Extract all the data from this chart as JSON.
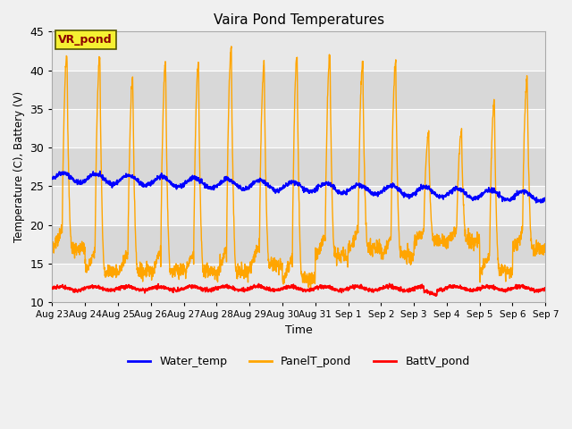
{
  "title": "Vaira Pond Temperatures",
  "xlabel": "Time",
  "ylabel": "Temperature (C), Battery (V)",
  "ylim": [
    10,
    45
  ],
  "background_color": "#f0f0f0",
  "plot_bg_color": "#e8e8e8",
  "band_colors": [
    "#e8e8e8",
    "#d8d8d8"
  ],
  "grid_color": "#ffffff",
  "annotation_text": "VR_pond",
  "annotation_bg": "#f5f032",
  "annotation_border": "#8B0000",
  "water_temp_color": "#0000ff",
  "panel_temp_color": "#FFA500",
  "batt_color": "#ff0000",
  "legend_labels": [
    "Water_temp",
    "PanelT_pond",
    "BattV_pond"
  ],
  "x_tick_labels": [
    "Aug 23",
    "Aug 24",
    "Aug 25",
    "Aug 26",
    "Aug 27",
    "Aug 28",
    "Aug 29",
    "Aug 30",
    "Aug 31",
    "Sep 1",
    "Sep 2",
    "Sep 3",
    "Sep 4",
    "Sep 5",
    "Sep 6",
    "Sep 7"
  ],
  "yticks": [
    10,
    15,
    20,
    25,
    30,
    35,
    40,
    45
  ],
  "num_days": 15,
  "peaks": [
    42,
    42,
    39,
    41,
    41,
    43,
    41,
    42,
    42,
    41,
    41,
    32,
    32,
    36,
    39
  ],
  "troughs": [
    17,
    14,
    14,
    14,
    14,
    14,
    15,
    13,
    16,
    17,
    16,
    18,
    18,
    14,
    17
  ]
}
